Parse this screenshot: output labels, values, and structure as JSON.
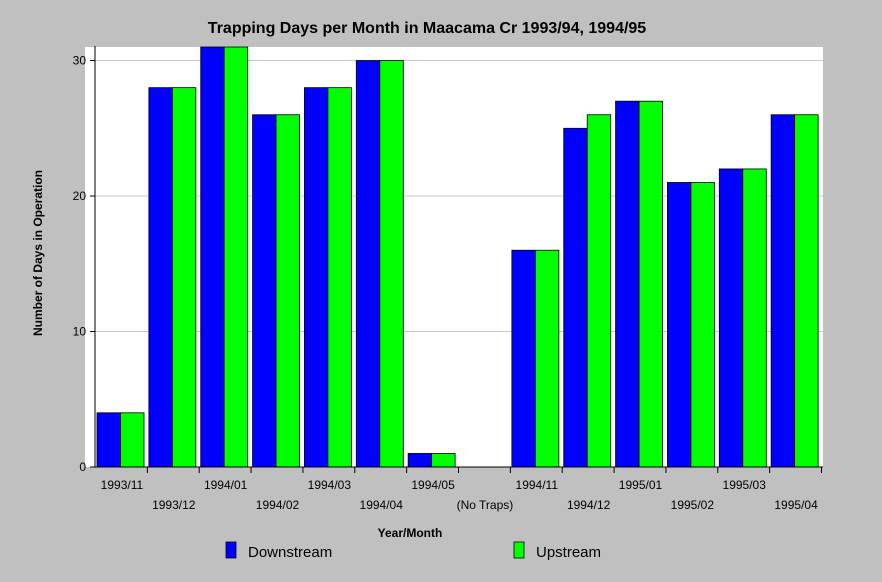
{
  "chart_data": {
    "type": "bar",
    "title": "Trapping Days per Month in Maacama Cr 1993/94, 1994/95",
    "xlabel": "Year/Month",
    "ylabel": "Number of Days in Operation",
    "categories": [
      "1993/11",
      "1993/12",
      "1994/01",
      "1994/02",
      "1994/03",
      "1994/04",
      "1994/05",
      "(No Traps)",
      "1994/11",
      "1994/12",
      "1995/01",
      "1995/02",
      "1995/03",
      "1995/04"
    ],
    "series": [
      {
        "name": "Downstream",
        "color": "#0000ff",
        "values": [
          4,
          28,
          31,
          26,
          28,
          30,
          1,
          null,
          16,
          25,
          27,
          21,
          22,
          26
        ]
      },
      {
        "name": "Upstream",
        "color": "#00ff00",
        "values": [
          4,
          28,
          31,
          26,
          28,
          30,
          1,
          null,
          16,
          26,
          27,
          21,
          22,
          26
        ]
      }
    ],
    "ylim": [
      0,
      31
    ],
    "yticks": [
      0,
      10,
      20,
      30
    ],
    "grid": true,
    "legend_position": "bottom"
  }
}
